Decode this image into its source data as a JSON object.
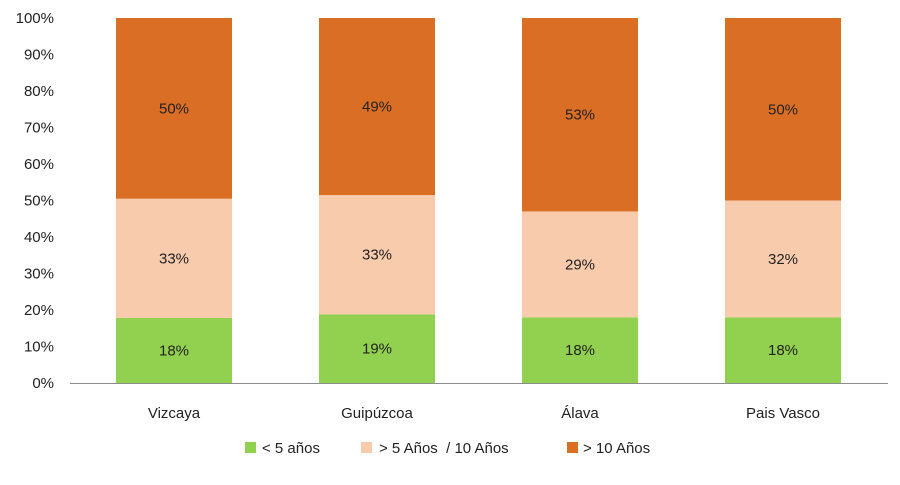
{
  "chart_data": {
    "type": "bar",
    "stacked": true,
    "percent": true,
    "categories": [
      "Vizcaya",
      "Guipúzcoa",
      "Álava",
      "Pais Vasco"
    ],
    "series": [
      {
        "name": "< 5 años",
        "color": "#92d050",
        "values": [
          18,
          19,
          18,
          18
        ],
        "labels": [
          "18%",
          "19%",
          "18%",
          "18%"
        ]
      },
      {
        "name": "> 5 Años  / 10 Años",
        "color": "#f8cbad",
        "values": [
          33,
          33,
          29,
          32
        ],
        "labels": [
          "33%",
          "33%",
          "29%",
          "32%"
        ]
      },
      {
        "name": "> 10 Años",
        "color": "#d96e24",
        "values": [
          50,
          49,
          53,
          50
        ],
        "labels": [
          "50%",
          "49%",
          "53%",
          "50%"
        ]
      }
    ],
    "ylim": [
      0,
      100
    ],
    "yticks": [
      "0%",
      "10%",
      "20%",
      "30%",
      "40%",
      "50%",
      "60%",
      "70%",
      "80%",
      "90%",
      "100%"
    ],
    "grid": false,
    "legend": "bottom"
  }
}
